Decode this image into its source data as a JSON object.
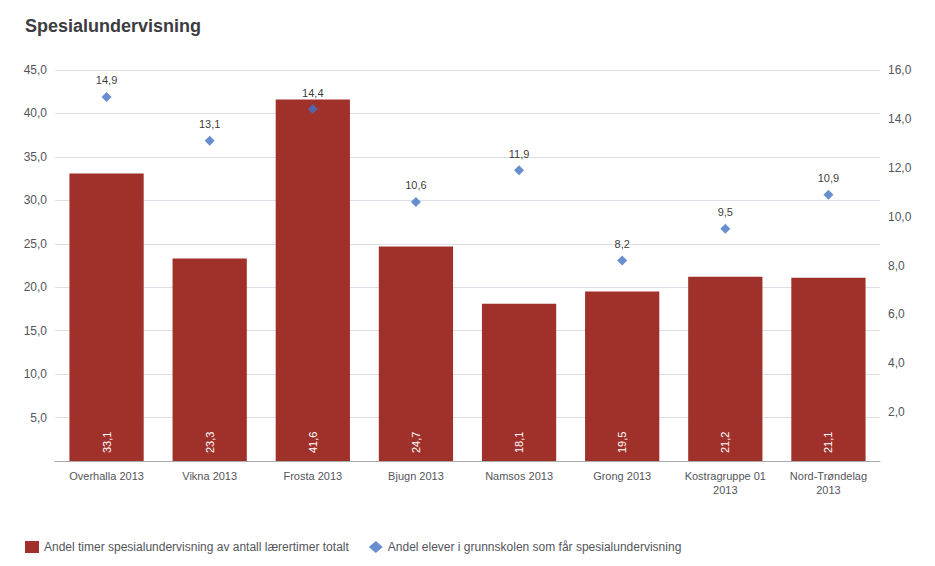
{
  "chart_data": {
    "type": "bar",
    "title": "Spesialundervisning",
    "categories": [
      "Overhalla 2013",
      "Vikna 2013",
      "Frosta 2013",
      "Bjugn 2013",
      "Namsos 2013",
      "Grong 2013",
      "Kostragruppe 01\n2013",
      "Nord-Trøndelag\n2013"
    ],
    "series": [
      {
        "name": "Andel timer spesialundervisning av antall lærertimer totalt",
        "type": "bar",
        "color": "#A0302A",
        "values": [
          33.1,
          23.3,
          41.6,
          24.7,
          18.1,
          19.5,
          21.2,
          21.1
        ],
        "value_labels": [
          "33,1",
          "23,3",
          "41,6",
          "24,7",
          "18,1",
          "19,5",
          "21,2",
          "21,1"
        ]
      },
      {
        "name": "Andel elever i grunnskolen som får spesialundervisning",
        "type": "scatter",
        "color": "#4472C4",
        "marker": "diamond",
        "axis": "y2",
        "values": [
          14.9,
          13.1,
          14.4,
          10.6,
          11.9,
          8.2,
          9.5,
          10.9
        ],
        "value_labels": [
          "14,9",
          "13,1",
          "14,4",
          "10,6",
          "11,9",
          "8,2",
          "9,5",
          "10,9"
        ]
      }
    ],
    "ylim": [
      0,
      45
    ],
    "yticks": [
      {
        "value": 0,
        "label": ""
      },
      {
        "value": 5.0,
        "label": "5,0"
      },
      {
        "value": 10.0,
        "label": "10,0"
      },
      {
        "value": 15.0,
        "label": "15,0"
      },
      {
        "value": 20.0,
        "label": "20,0"
      },
      {
        "value": 25.0,
        "label": "25,0"
      },
      {
        "value": 30.0,
        "label": "30,0"
      },
      {
        "value": 35.0,
        "label": "35,0"
      },
      {
        "value": 40.0,
        "label": "40,0"
      },
      {
        "value": 45.0,
        "label": "45,0"
      }
    ],
    "y2lim": [
      0,
      16.0
    ],
    "y2ticks": [
      {
        "value": 0,
        "label": ""
      },
      {
        "value": 2.0,
        "label": "2,0"
      },
      {
        "value": 4.0,
        "label": "4,0"
      },
      {
        "value": 6.0,
        "label": "6,0"
      },
      {
        "value": 8.0,
        "label": "8,0"
      },
      {
        "value": 10.0,
        "label": "10,0"
      },
      {
        "value": 12.0,
        "label": "12,0"
      },
      {
        "value": 14.0,
        "label": "14,0"
      },
      {
        "value": 16.0,
        "label": "16,0"
      }
    ],
    "grid": true,
    "legend": "bottom",
    "data_labels": true
  }
}
